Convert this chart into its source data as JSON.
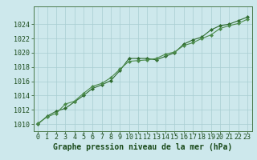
{
  "line1_x": [
    0,
    1,
    2,
    3,
    4,
    5,
    6,
    7,
    8,
    9,
    10,
    11,
    12,
    13,
    14,
    15,
    16,
    17,
    18,
    19,
    20,
    21,
    22,
    23
  ],
  "line1_y": [
    1010.0,
    1011.1,
    1011.8,
    1012.2,
    1013.1,
    1014.0,
    1015.0,
    1015.5,
    1016.1,
    1017.5,
    1019.2,
    1019.2,
    1019.2,
    1019.0,
    1019.5,
    1020.0,
    1021.2,
    1021.8,
    1022.2,
    1023.2,
    1023.8,
    1024.0,
    1024.5,
    1025.0
  ],
  "line2_x": [
    0,
    1,
    2,
    3,
    4,
    5,
    6,
    7,
    8,
    9,
    10,
    11,
    12,
    13,
    14,
    15,
    16,
    17,
    18,
    19,
    20,
    21,
    22,
    23
  ],
  "line2_y": [
    1010.1,
    1011.0,
    1011.5,
    1012.8,
    1013.2,
    1014.3,
    1015.3,
    1015.7,
    1016.5,
    1017.7,
    1018.8,
    1018.9,
    1019.0,
    1019.2,
    1019.8,
    1020.1,
    1021.0,
    1021.4,
    1022.0,
    1022.5,
    1023.4,
    1023.8,
    1024.1,
    1024.7
  ],
  "line_color1": "#2d6a2d",
  "line_color2": "#4a8a4a",
  "bg_color": "#cde8ec",
  "grid_color": "#a8cdd2",
  "xlabel": "Graphe pression niveau de la mer (hPa)",
  "ylim": [
    1009.0,
    1026.5
  ],
  "xlim": [
    -0.5,
    23.5
  ],
  "yticks": [
    1010,
    1012,
    1014,
    1016,
    1018,
    1020,
    1022,
    1024
  ],
  "xticks": [
    0,
    1,
    2,
    3,
    4,
    5,
    6,
    7,
    8,
    9,
    10,
    11,
    12,
    13,
    14,
    15,
    16,
    17,
    18,
    19,
    20,
    21,
    22,
    23
  ],
  "text_color": "#1a4a1a",
  "label_fontsize": 7.0,
  "tick_fontsize": 6.0,
  "spine_color": "#4a7a4a"
}
